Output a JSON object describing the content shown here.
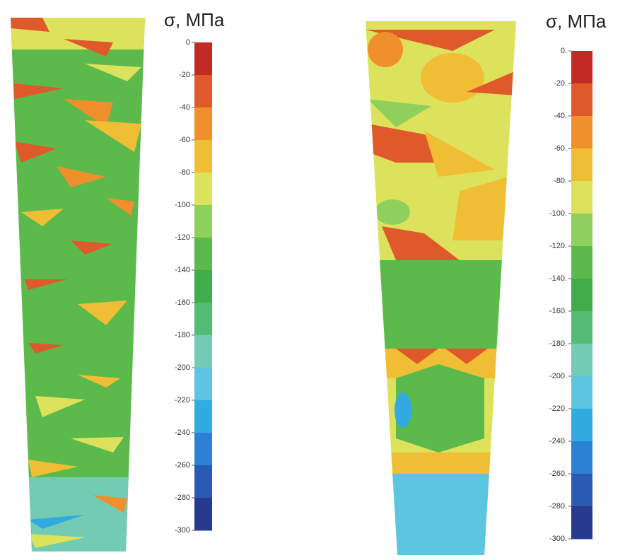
{
  "panels": [
    {
      "title": "σ, МПа",
      "colorbar": {
        "labels": [
          "0",
          "-20",
          "-40",
          "-60",
          "-80",
          "-100",
          "-120",
          "-140",
          "-160",
          "-180",
          "-200",
          "-220",
          "-240",
          "-260",
          "-280",
          "-300"
        ],
        "colors": [
          "#c22a26",
          "#e0592a",
          "#f0902c",
          "#f0be34",
          "#dde25c",
          "#8fcf5c",
          "#5cba4c",
          "#3fae4a",
          "#52bb74",
          "#74cbb4",
          "#5cc6e2",
          "#32aae2",
          "#2c82d2",
          "#2a5ab2",
          "#283a8e"
        ]
      }
    },
    {
      "title": "σ, МПа",
      "colorbar": {
        "labels": [
          "0.",
          "-20.",
          "-40.",
          "-60.",
          "-80.",
          "-100.",
          "-120.",
          "-140.",
          "-160.",
          "-180.",
          "-200.",
          "-220.",
          "-240.",
          "-260.",
          "-280.",
          "-300."
        ],
        "colors": [
          "#c22a26",
          "#e0592a",
          "#f0902c",
          "#f0be34",
          "#dde25c",
          "#8fcf5c",
          "#5cba4c",
          "#3fae4a",
          "#52bb74",
          "#74cbb4",
          "#5cc6e2",
          "#32aae2",
          "#2c82d2",
          "#2a5ab2",
          "#283a8e"
        ]
      }
    }
  ]
}
